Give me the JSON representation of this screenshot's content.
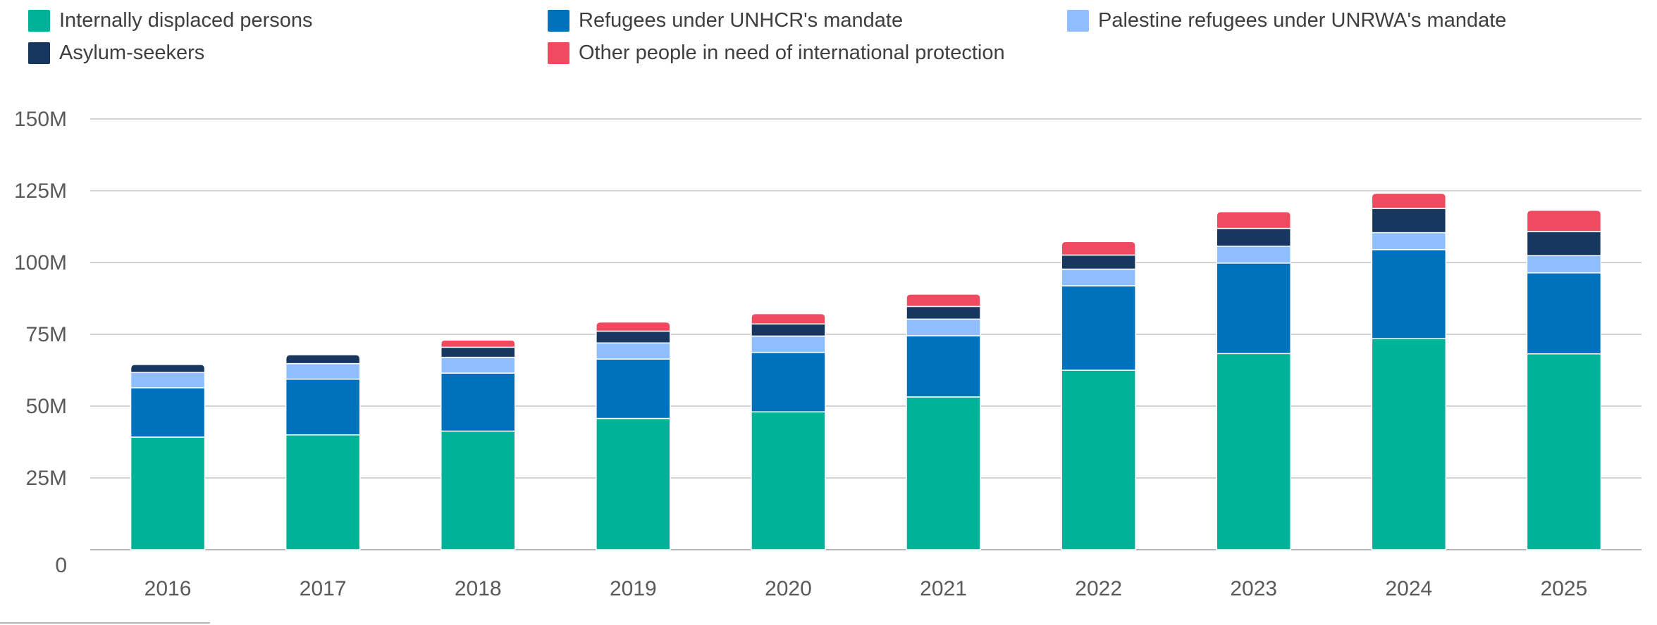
{
  "chart_data": {
    "type": "bar",
    "stacked": true,
    "categories": [
      "2016",
      "2017",
      "2018",
      "2019",
      "2020",
      "2021",
      "2022",
      "2023",
      "2024",
      "2025"
    ],
    "series": [
      {
        "name": "Internally displaced persons",
        "color": "#00b398",
        "values": [
          39.2,
          40.0,
          41.3,
          45.7,
          48.0,
          53.2,
          62.5,
          68.3,
          73.5,
          68.2
        ]
      },
      {
        "name": "Refugees under UNHCR's mandate",
        "color": "#0072bc",
        "values": [
          17.2,
          19.4,
          20.2,
          20.7,
          20.7,
          21.3,
          29.4,
          31.5,
          31.0,
          28.2
        ]
      },
      {
        "name": "Palestine refugees under UNRWA's mandate",
        "color": "#8ebeff",
        "values": [
          5.3,
          5.4,
          5.5,
          5.6,
          5.7,
          5.8,
          5.8,
          5.9,
          5.9,
          6.0
        ]
      },
      {
        "name": "Asylum-seekers",
        "color": "#18375f",
        "values": [
          2.8,
          3.1,
          3.5,
          4.1,
          4.2,
          4.4,
          4.9,
          6.2,
          8.4,
          8.4
        ]
      },
      {
        "name": "Other people in need of international protection",
        "color": "#ef4a60",
        "values": [
          0,
          0,
          2.5,
          3.2,
          3.6,
          4.3,
          4.7,
          5.8,
          5.3,
          7.4
        ]
      }
    ],
    "y_ticks": [
      {
        "value": 0,
        "label": "0"
      },
      {
        "value": 25,
        "label": "25M"
      },
      {
        "value": 50,
        "label": "50M"
      },
      {
        "value": 75,
        "label": "75M"
      },
      {
        "value": 100,
        "label": "100M"
      },
      {
        "value": 125,
        "label": "125M"
      },
      {
        "value": 150,
        "label": "150M"
      }
    ],
    "ylim": [
      0,
      150
    ],
    "unit": "M",
    "grid": true,
    "legend_position": "top-left",
    "title": "",
    "xlabel": "",
    "ylabel": ""
  }
}
